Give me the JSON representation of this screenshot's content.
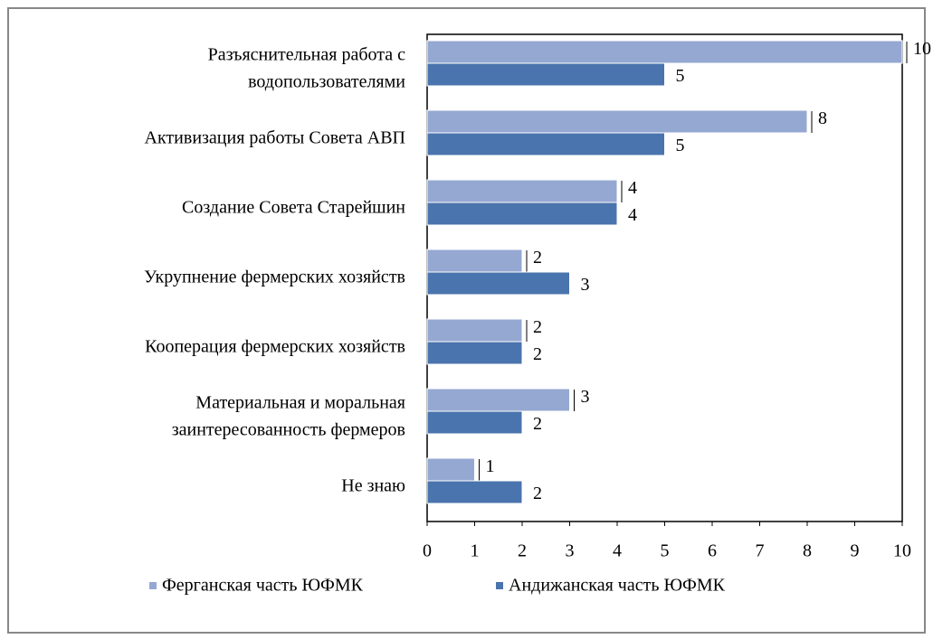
{
  "chart_data": {
    "type": "bar",
    "orientation": "horizontal",
    "categories": [
      [
        "Разъяснительная работа с",
        "водопользователями"
      ],
      [
        "Активизация работы Совета АВП"
      ],
      [
        "Создание Совета Старейшин"
      ],
      [
        "Укрупнение фермерских хозяйств"
      ],
      [
        "Кооперация фермерских хозяйств"
      ],
      [
        "Материальная и моральная",
        "заинтересованность фермеров"
      ],
      [
        "Не знаю"
      ]
    ],
    "series": [
      {
        "name": "Ферганская часть ЮФМК",
        "color": "#95a8d2",
        "values": [
          10,
          8,
          4,
          2,
          2,
          3,
          1
        ]
      },
      {
        "name": "Андижанская часть ЮФМК",
        "color": "#4a74ad",
        "values": [
          5,
          5,
          4,
          3,
          2,
          2,
          2
        ]
      }
    ],
    "xlim": [
      0,
      10
    ],
    "xticks": [
      0,
      1,
      2,
      3,
      4,
      5,
      6,
      7,
      8,
      9,
      10
    ],
    "legend": "bottom"
  }
}
